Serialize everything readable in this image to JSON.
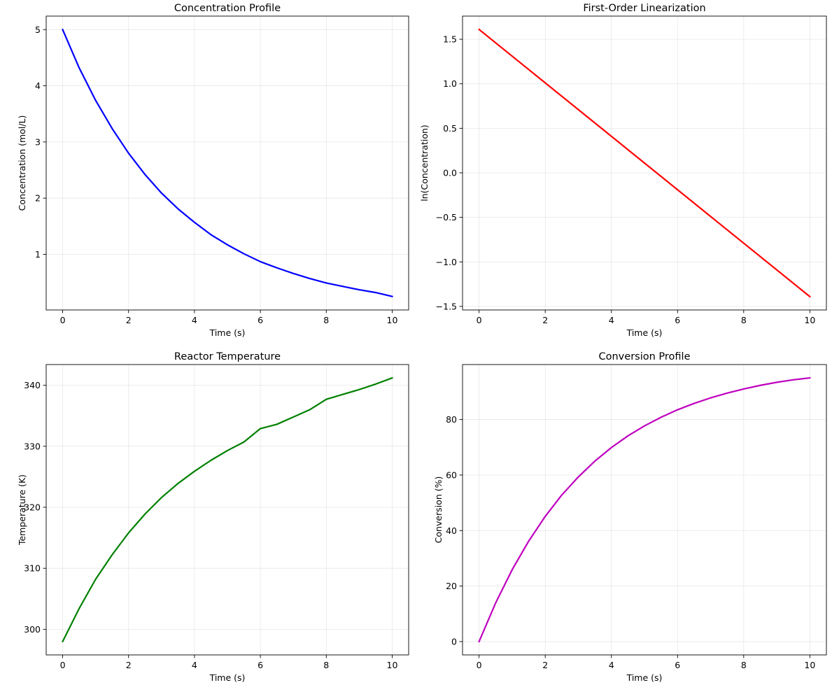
{
  "chart_data": [
    {
      "type": "line",
      "title": "Concentration Profile",
      "xlabel": "Time (s)",
      "ylabel": "Concentration (mol/L)",
      "xlim": [
        -0.5,
        10.5
      ],
      "ylim": [
        0.01,
        5.24
      ],
      "xticks": [
        0,
        2,
        4,
        6,
        8,
        10
      ],
      "yticks": [
        1,
        2,
        3,
        4,
        5
      ],
      "grid": true,
      "color": "#0000ff",
      "series": [
        {
          "x": [
            0,
            0.5,
            1,
            1.5,
            2,
            2.5,
            3,
            3.5,
            4,
            4.5,
            5,
            5.5,
            6,
            6.5,
            7,
            7.5,
            8,
            8.5,
            9,
            9.5,
            10
          ],
          "values": [
            5.0,
            4.32,
            3.74,
            3.24,
            2.8,
            2.42,
            2.09,
            1.81,
            1.57,
            1.35,
            1.17,
            1.01,
            0.87,
            0.76,
            0.66,
            0.57,
            0.49,
            0.43,
            0.37,
            0.32,
            0.25
          ]
        }
      ]
    },
    {
      "type": "line",
      "title": "First-Order Linearization",
      "xlabel": "Time (s)",
      "ylabel": "ln(Concentration)",
      "xlim": [
        -0.5,
        10.5
      ],
      "ylim": [
        -1.54,
        1.76
      ],
      "xticks": [
        0,
        2,
        4,
        6,
        8,
        10
      ],
      "yticks": [
        -1.5,
        -1.0,
        -0.5,
        0.0,
        0.5,
        1.0,
        1.5
      ],
      "yticklabels": [
        "−1.5",
        "−1.0",
        "−0.5",
        "0.0",
        "0.5",
        "1.0",
        "1.5"
      ],
      "grid": true,
      "color": "#ff0000",
      "series": [
        {
          "x": [
            0,
            10
          ],
          "values": [
            1.61,
            -1.39
          ]
        }
      ]
    },
    {
      "type": "line",
      "title": "Reactor Temperature",
      "xlabel": "Time (s)",
      "ylabel": "Temperature (K)",
      "xlim": [
        -0.5,
        10.5
      ],
      "ylim": [
        295.8,
        343.4
      ],
      "xticks": [
        0,
        2,
        4,
        6,
        8,
        10
      ],
      "yticks": [
        300,
        310,
        320,
        330,
        340
      ],
      "grid": true,
      "color": "#008000",
      "series": [
        {
          "x": [
            0,
            0.5,
            1,
            1.5,
            2,
            2.5,
            3,
            3.5,
            4,
            4.5,
            5,
            5.5,
            6,
            6.5,
            7,
            7.5,
            8,
            8.5,
            9,
            9.5,
            10
          ],
          "values": [
            298.0,
            303.4,
            308.2,
            312.2,
            315.8,
            318.9,
            321.6,
            323.9,
            325.9,
            327.7,
            329.3,
            330.7,
            332.9,
            333.6,
            334.8,
            336.0,
            337.7,
            338.5,
            339.3,
            340.2,
            341.2
          ]
        }
      ]
    },
    {
      "type": "line",
      "title": "Conversion Profile",
      "xlabel": "Time (s)",
      "ylabel": "Conversion (%)",
      "xlim": [
        -0.5,
        10.5
      ],
      "ylim": [
        -4.8,
        99.8
      ],
      "xticks": [
        0,
        2,
        4,
        6,
        8,
        10
      ],
      "yticks": [
        0,
        20,
        40,
        60,
        80
      ],
      "grid": true,
      "color": "#bf00bf",
      "series": [
        {
          "x": [
            0,
            0.5,
            1,
            1.5,
            2,
            2.5,
            3,
            3.5,
            4,
            4.5,
            5,
            5.5,
            6,
            6.5,
            7,
            7.5,
            8,
            8.5,
            9,
            9.5,
            10
          ],
          "values": [
            0,
            13.9,
            25.9,
            36.2,
            45.1,
            52.8,
            59.3,
            65.0,
            69.9,
            74.1,
            77.7,
            80.8,
            83.5,
            85.8,
            87.8,
            89.5,
            91.0,
            92.3,
            93.4,
            94.3,
            95.0
          ]
        }
      ]
    }
  ]
}
